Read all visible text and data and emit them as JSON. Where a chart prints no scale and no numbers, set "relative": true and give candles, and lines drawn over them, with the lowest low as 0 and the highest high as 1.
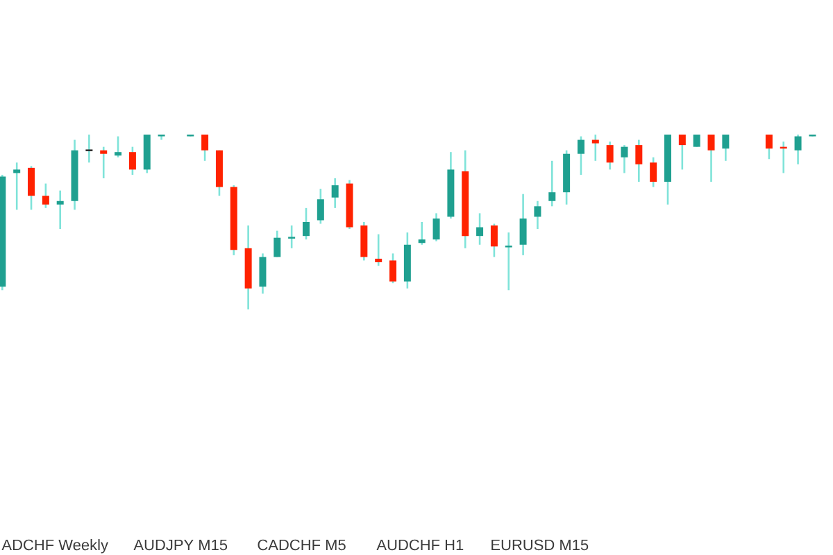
{
  "chart_data": {
    "type": "candlestick",
    "relative": true,
    "categories": [
      null,
      null,
      null,
      null,
      null,
      null,
      null,
      null,
      null,
      null,
      null,
      null,
      null,
      null,
      null,
      null,
      null,
      null,
      null,
      null,
      null,
      null,
      null,
      null,
      null,
      null,
      null,
      null,
      null,
      null,
      null,
      null,
      null,
      null,
      null,
      null,
      null,
      null,
      null,
      null,
      null,
      null,
      null,
      null,
      null,
      null,
      null,
      null,
      null,
      null,
      null,
      null,
      null,
      null,
      null,
      null,
      null
    ],
    "ohlc": [
      [
        0.13,
        0.77,
        0.11,
        0.76
      ],
      [
        0.78,
        0.84,
        0.57,
        0.8
      ],
      [
        0.81,
        0.82,
        0.57,
        0.65
      ],
      [
        0.65,
        0.72,
        0.58,
        0.6
      ],
      [
        0.6,
        0.68,
        0.46,
        0.62
      ],
      [
        0.62,
        0.97,
        0.57,
        0.91
      ],
      [
        0.91,
        1.0,
        0.84,
        0.91
      ],
      [
        0.91,
        0.93,
        0.75,
        0.89
      ],
      [
        0.88,
        0.99,
        0.87,
        0.9
      ],
      [
        0.9,
        0.93,
        0.77,
        0.8
      ],
      [
        0.8,
        1.0,
        0.78,
        1.0
      ],
      [
        0.99,
        1.0,
        0.97,
        1.0
      ],
      null,
      [
        0.99,
        1.0,
        0.99,
        1.0
      ],
      [
        1.0,
        1.0,
        0.85,
        0.91
      ],
      [
        0.91,
        0.91,
        0.65,
        0.7
      ],
      [
        0.7,
        0.71,
        0.31,
        0.34
      ],
      [
        0.35,
        0.48,
        0.0,
        0.12
      ],
      [
        0.13,
        0.32,
        0.09,
        0.3
      ],
      [
        0.3,
        0.45,
        0.3,
        0.41
      ],
      [
        0.41,
        0.48,
        0.35,
        0.41
      ],
      [
        0.42,
        0.58,
        0.4,
        0.5
      ],
      [
        0.51,
        0.69,
        0.49,
        0.63
      ],
      [
        0.64,
        0.75,
        0.58,
        0.71
      ],
      [
        0.72,
        0.74,
        0.46,
        0.47
      ],
      [
        0.48,
        0.5,
        0.28,
        0.3
      ],
      [
        0.29,
        0.43,
        0.25,
        0.27
      ],
      [
        0.28,
        0.32,
        0.15,
        0.16
      ],
      [
        0.16,
        0.44,
        0.12,
        0.37
      ],
      [
        0.38,
        0.5,
        0.37,
        0.4
      ],
      [
        0.4,
        0.55,
        0.39,
        0.52
      ],
      [
        0.53,
        0.9,
        0.52,
        0.8
      ],
      [
        0.79,
        0.91,
        0.35,
        0.42
      ],
      [
        0.42,
        0.55,
        0.37,
        0.47
      ],
      [
        0.48,
        0.49,
        0.3,
        0.36
      ],
      [
        0.36,
        0.44,
        0.11,
        0.36
      ],
      [
        0.37,
        0.66,
        0.31,
        0.52
      ],
      [
        0.53,
        0.62,
        0.46,
        0.59
      ],
      [
        0.62,
        0.85,
        0.59,
        0.67
      ],
      [
        0.67,
        0.91,
        0.6,
        0.89
      ],
      [
        0.89,
        0.99,
        0.77,
        0.97
      ],
      [
        0.97,
        1.0,
        0.85,
        0.95
      ],
      [
        0.94,
        0.96,
        0.8,
        0.84
      ],
      [
        0.87,
        0.94,
        0.78,
        0.93
      ],
      [
        0.94,
        0.97,
        0.73,
        0.83
      ],
      [
        0.84,
        0.87,
        0.7,
        0.73
      ],
      [
        0.73,
        1.0,
        0.6,
        1.0
      ],
      [
        1.0,
        1.0,
        0.8,
        0.94
      ],
      [
        0.93,
        1.0,
        0.93,
        1.0
      ],
      [
        1.0,
        1.0,
        0.73,
        0.91
      ],
      [
        0.92,
        1.0,
        0.85,
        1.0
      ],
      null,
      null,
      [
        1.0,
        1.0,
        0.86,
        0.92
      ],
      [
        0.93,
        0.96,
        0.78,
        0.92
      ],
      [
        0.91,
        1.0,
        0.83,
        0.99
      ],
      [
        0.99,
        1.0,
        0.99,
        1.0
      ]
    ],
    "colors": [
      "#1fa090",
      "#1fa090",
      "#ff2200",
      "#ff2200",
      "#1fa090",
      "#1fa090",
      "#2a2a2a",
      "#ff2200",
      "#1fa090",
      "#ff2200",
      "#1fa090",
      "#1fa090",
      null,
      "#1fa090",
      "#ff2200",
      "#ff2200",
      "#ff2200",
      "#ff2200",
      "#1fa090",
      "#1fa090",
      "#1fa090",
      "#1fa090",
      "#1fa090",
      "#1fa090",
      "#ff2200",
      "#ff2200",
      "#ff2200",
      "#ff2200",
      "#1fa090",
      "#1fa090",
      "#1fa090",
      "#1fa090",
      "#ff2200",
      "#1fa090",
      "#ff2200",
      "#1fa090",
      "#1fa090",
      "#1fa090",
      "#1fa090",
      "#1fa090",
      "#1fa090",
      "#ff2200",
      "#ff2200",
      "#1fa090",
      "#ff2200",
      "#ff2200",
      "#1fa090",
      "#ff2200",
      "#1fa090",
      "#ff2200",
      "#1fa090",
      null,
      null,
      "#ff2200",
      "#ff2200",
      "#1fa090",
      "#1fa090"
    ],
    "annotations": [
      "ADCHF Weekly",
      "AUDJPY M15",
      "CADCHF M5",
      "AUDCHF H1",
      "EURUSD M15"
    ]
  }
}
